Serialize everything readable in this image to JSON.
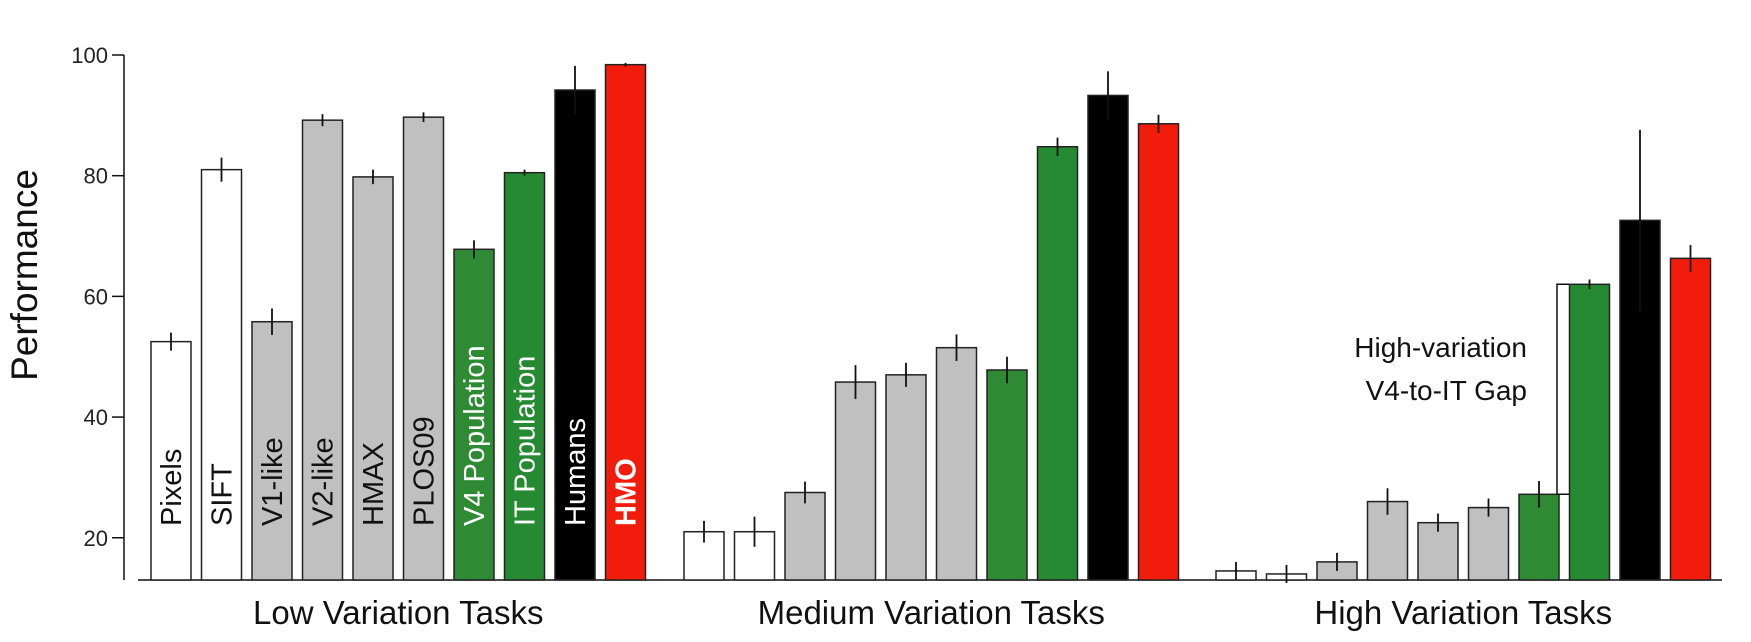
{
  "chart_data": {
    "type": "bar",
    "ylabel": "Performance",
    "ylim": [
      13,
      100
    ],
    "yticks": [
      20,
      40,
      60,
      80,
      100
    ],
    "groups": [
      "Low Variation Tasks",
      "Medium Variation Tasks",
      "High Variation Tasks"
    ],
    "series": [
      {
        "name": "Pixels",
        "label_color": "#111111",
        "bold": false,
        "fill": "#ffffff",
        "values": [
          52.5,
          21,
          14.5
        ],
        "errors": [
          1.5,
          1.8,
          1.5
        ]
      },
      {
        "name": "SIFT",
        "label_color": "#111111",
        "bold": false,
        "fill": "#ffffff",
        "values": [
          81,
          21,
          14
        ],
        "errors": [
          2,
          2.5,
          1.5
        ]
      },
      {
        "name": "V1-like",
        "label_color": "#111111",
        "bold": false,
        "fill": "#c0c0c0",
        "values": [
          55.8,
          27.5,
          16
        ],
        "errors": [
          2.2,
          1.8,
          1.5
        ]
      },
      {
        "name": "V2-like",
        "label_color": "#111111",
        "bold": false,
        "fill": "#c0c0c0",
        "values": [
          89.2,
          45.8,
          26
        ],
        "errors": [
          1,
          2.8,
          2.2
        ]
      },
      {
        "name": "HMAX",
        "label_color": "#111111",
        "bold": false,
        "fill": "#c0c0c0",
        "values": [
          79.8,
          47,
          22.5
        ],
        "errors": [
          1.2,
          2,
          1.5
        ]
      },
      {
        "name": "PLOS09",
        "label_color": "#111111",
        "bold": false,
        "fill": "#c0c0c0",
        "values": [
          89.7,
          51.5,
          25
        ],
        "errors": [
          0.8,
          2.2,
          1.5
        ]
      },
      {
        "name": "V4 Population",
        "label_color": "#ffffff",
        "bold": false,
        "fill": "#2e8b34",
        "values": [
          67.8,
          47.8,
          27.2
        ],
        "errors": [
          1.5,
          2.2,
          2.2
        ]
      },
      {
        "name": "IT Population",
        "label_color": "#ffffff",
        "bold": false,
        "fill": "#268a32",
        "values": [
          80.5,
          84.8,
          62
        ],
        "errors": [
          0.5,
          1.5,
          0.8
        ]
      },
      {
        "name": "Humans",
        "label_color": "#ffffff",
        "bold": false,
        "fill": "#000000",
        "values": [
          94.2,
          93.3,
          72.6
        ],
        "errors": [
          4,
          4,
          15
        ]
      },
      {
        "name": "HMO",
        "label_color": "#ffffff",
        "bold": true,
        "fill": "#f21c0c",
        "values": [
          98.4,
          88.6,
          66.3
        ],
        "errors": [
          0.3,
          1.5,
          2.2
        ]
      }
    ],
    "annotation": {
      "lines": [
        "High-variation",
        "V4-to-IT Gap"
      ],
      "from_value": 62,
      "to_value": 27.2
    },
    "grid": false,
    "legend": "none"
  }
}
